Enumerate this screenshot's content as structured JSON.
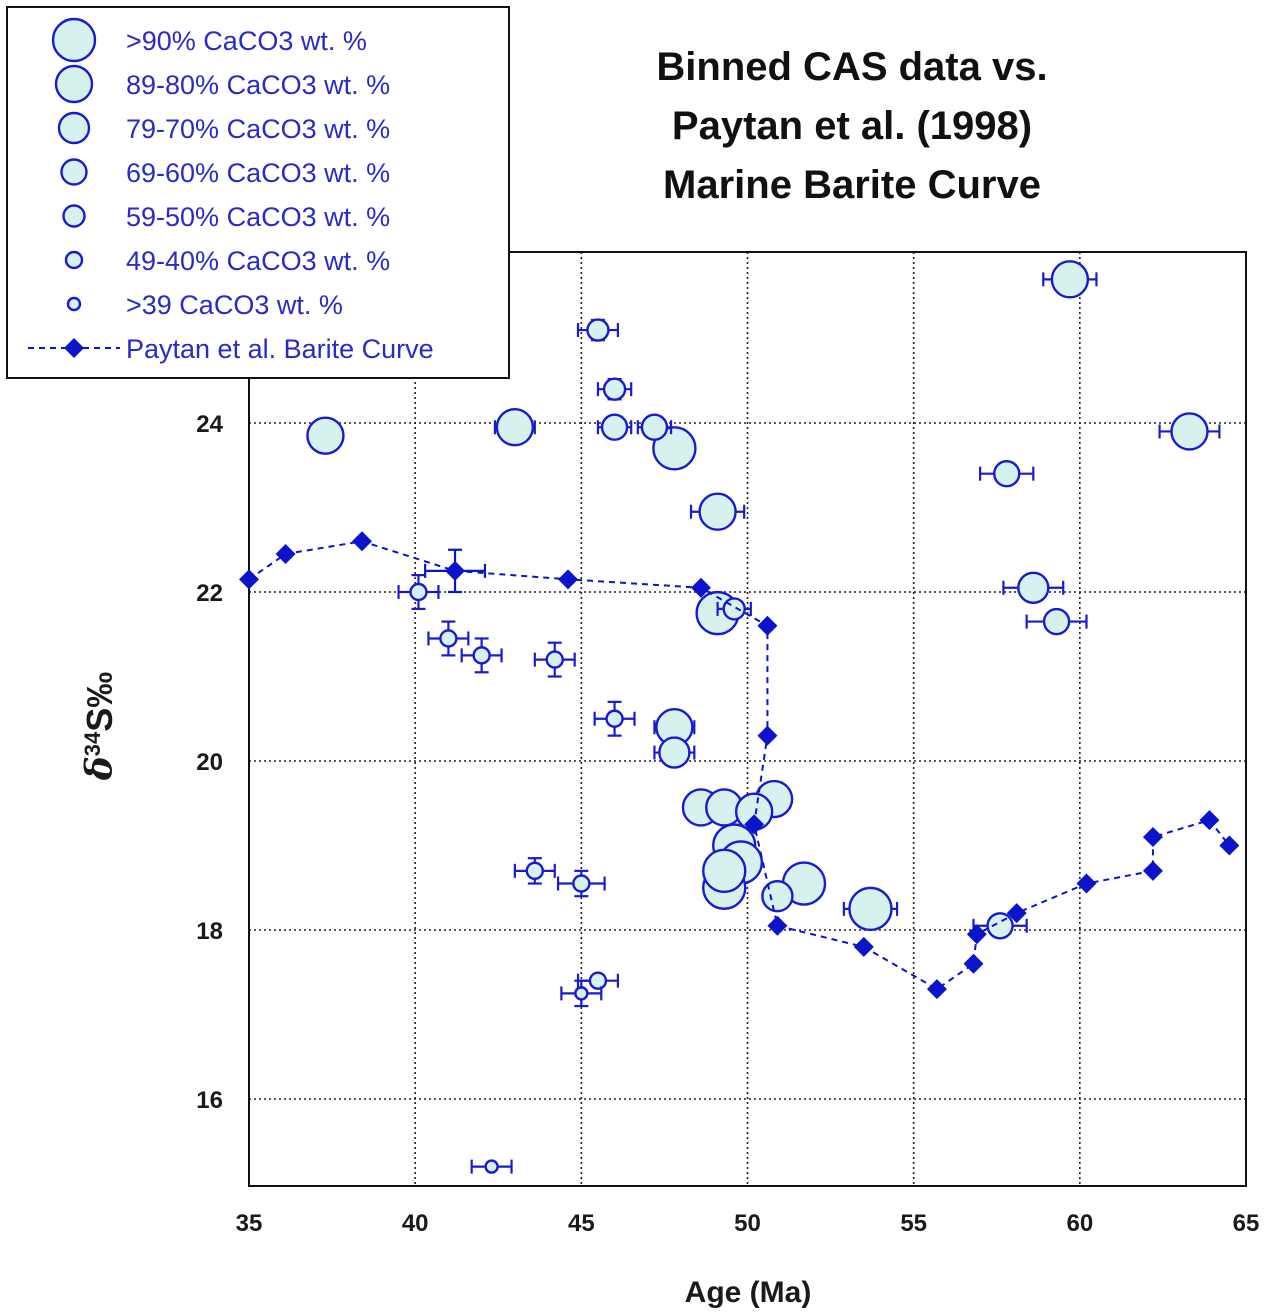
{
  "colors": {
    "marker_fill": "#d6f2ee",
    "marker_stroke": "#1a1ad0",
    "barite": "#0b14c8",
    "legend_text": "#2a2ac8",
    "axes": "#111111"
  },
  "chart_data": {
    "type": "scatter",
    "title": [
      "Binned CAS data vs.",
      "Paytan et al. (1998)",
      "Marine Barite Curve"
    ],
    "xlabel": "Age (Ma)",
    "ylabel": "δ34S‰",
    "xlim": [
      35,
      65
    ],
    "ylim": [
      15,
      26
    ],
    "xticks": [
      35,
      40,
      45,
      50,
      55,
      60,
      65
    ],
    "yticks": [
      16,
      18,
      20,
      22,
      24
    ],
    "grid": true,
    "legend_position": "top-left",
    "legend": [
      {
        "label": ">90% CaCO3 wt. %",
        "bin": 1
      },
      {
        "label": "89-80% CaCO3 wt. %",
        "bin": 2
      },
      {
        "label": "79-70% CaCO3 wt. %",
        "bin": 3
      },
      {
        "label": "69-60% CaCO3 wt. %",
        "bin": 4
      },
      {
        "label": "59-50% CaCO3 wt. %",
        "bin": 5
      },
      {
        "label": "49-40% CaCO3 wt. %",
        "bin": 6
      },
      {
        "label": ">39 CaCO3 wt. %",
        "bin": 7
      },
      {
        "label": "Paytan et al. Barite Curve",
        "bin": "line"
      }
    ],
    "cas_points": [
      {
        "x": 59.7,
        "y": 25.7,
        "bin": 2,
        "xerr": 0.8,
        "yerr": 0
      },
      {
        "x": 45.5,
        "y": 25.1,
        "bin": 5,
        "xerr": 0.6,
        "yerr": 0.12
      },
      {
        "x": 46.0,
        "y": 24.4,
        "bin": 5,
        "xerr": 0.5,
        "yerr": 0.12
      },
      {
        "x": 37.3,
        "y": 23.85,
        "bin": 2,
        "xerr": 0,
        "yerr": 0
      },
      {
        "x": 43.0,
        "y": 23.95,
        "bin": 2,
        "xerr": 0.6,
        "yerr": 0
      },
      {
        "x": 46.0,
        "y": 23.95,
        "bin": 4,
        "xerr": 0.5,
        "yerr": 0.1
      },
      {
        "x": 47.2,
        "y": 23.95,
        "bin": 4,
        "xerr": 0.5,
        "yerr": 0
      },
      {
        "x": 47.8,
        "y": 23.7,
        "bin": 1,
        "xerr": 0.5,
        "yerr": 0
      },
      {
        "x": 63.3,
        "y": 23.9,
        "bin": 2,
        "xerr": 0.9,
        "yerr": 0
      },
      {
        "x": 57.8,
        "y": 23.4,
        "bin": 4,
        "xerr": 0.8,
        "yerr": 0
      },
      {
        "x": 49.1,
        "y": 22.95,
        "bin": 2,
        "xerr": 0.8,
        "yerr": 0
      },
      {
        "x": 58.6,
        "y": 22.05,
        "bin": 3,
        "xerr": 0.9,
        "yerr": 0
      },
      {
        "x": 40.1,
        "y": 22.0,
        "bin": 6,
        "xerr": 0.6,
        "yerr": 0.2
      },
      {
        "x": 49.1,
        "y": 21.75,
        "bin": 1,
        "xerr": 0.4,
        "yerr": 0
      },
      {
        "x": 49.6,
        "y": 21.8,
        "bin": 5,
        "xerr": 0.5,
        "yerr": 0
      },
      {
        "x": 59.3,
        "y": 21.65,
        "bin": 4,
        "xerr": 0.9,
        "yerr": 0
      },
      {
        "x": 41.0,
        "y": 21.45,
        "bin": 6,
        "xerr": 0.6,
        "yerr": 0.2
      },
      {
        "x": 42.0,
        "y": 21.25,
        "bin": 6,
        "xerr": 0.6,
        "yerr": 0.2
      },
      {
        "x": 44.2,
        "y": 21.2,
        "bin": 6,
        "xerr": 0.6,
        "yerr": 0.2
      },
      {
        "x": 46.0,
        "y": 20.5,
        "bin": 6,
        "xerr": 0.6,
        "yerr": 0.2
      },
      {
        "x": 47.8,
        "y": 20.4,
        "bin": 2,
        "xerr": 0.6,
        "yerr": 0
      },
      {
        "x": 47.8,
        "y": 20.1,
        "bin": 3,
        "xerr": 0.6,
        "yerr": 0
      },
      {
        "x": 50.8,
        "y": 19.55,
        "bin": 2,
        "xerr": 0.3,
        "yerr": 0
      },
      {
        "x": 48.6,
        "y": 19.45,
        "bin": 2,
        "xerr": 0,
        "yerr": 0
      },
      {
        "x": 49.3,
        "y": 19.45,
        "bin": 2,
        "xerr": 0,
        "yerr": 0
      },
      {
        "x": 50.2,
        "y": 19.4,
        "bin": 2,
        "xerr": 0,
        "yerr": 0
      },
      {
        "x": 49.6,
        "y": 19.0,
        "bin": 1,
        "xerr": 0,
        "yerr": 0
      },
      {
        "x": 49.8,
        "y": 18.8,
        "bin": 1,
        "xerr": 0.4,
        "yerr": 0
      },
      {
        "x": 49.3,
        "y": 18.5,
        "bin": 1,
        "xerr": 0,
        "yerr": 0
      },
      {
        "x": 49.3,
        "y": 18.7,
        "bin": 1,
        "xerr": 0.5,
        "yerr": 0
      },
      {
        "x": 51.7,
        "y": 18.55,
        "bin": 1,
        "xerr": 0,
        "yerr": 0
      },
      {
        "x": 50.9,
        "y": 18.4,
        "bin": 3,
        "xerr": 0,
        "yerr": 0
      },
      {
        "x": 53.7,
        "y": 18.25,
        "bin": 1,
        "xerr": 0.8,
        "yerr": 0
      },
      {
        "x": 57.6,
        "y": 18.05,
        "bin": 4,
        "xerr": 0.8,
        "yerr": 0
      },
      {
        "x": 43.6,
        "y": 18.7,
        "bin": 6,
        "xerr": 0.6,
        "yerr": 0.15
      },
      {
        "x": 45.0,
        "y": 18.55,
        "bin": 6,
        "xerr": 0.7,
        "yerr": 0.15
      },
      {
        "x": 45.5,
        "y": 17.4,
        "bin": 6,
        "xerr": 0.6,
        "yerr": 0
      },
      {
        "x": 45.0,
        "y": 17.25,
        "bin": 7,
        "xerr": 0.6,
        "yerr": 0.15
      },
      {
        "x": 42.3,
        "y": 15.2,
        "bin": 7,
        "xerr": 0.6,
        "yerr": 0
      }
    ],
    "barite_curve": {
      "name": "Paytan et al. Barite Curve",
      "points": [
        {
          "x": 35.0,
          "y": 22.15,
          "xerr": 0,
          "yerr": 0
        },
        {
          "x": 36.1,
          "y": 22.45,
          "xerr": 0,
          "yerr": 0
        },
        {
          "x": 38.4,
          "y": 22.6,
          "xerr": 0,
          "yerr": 0
        },
        {
          "x": 41.2,
          "y": 22.25,
          "xerr": 0.9,
          "yerr": 0.25
        },
        {
          "x": 44.6,
          "y": 22.15,
          "xerr": 0,
          "yerr": 0
        },
        {
          "x": 48.6,
          "y": 22.05,
          "xerr": 0,
          "yerr": 0
        },
        {
          "x": 50.6,
          "y": 21.6,
          "xerr": 0,
          "yerr": 0
        },
        {
          "x": 50.6,
          "y": 20.3,
          "xerr": 0,
          "yerr": 0
        },
        {
          "x": 50.2,
          "y": 19.25,
          "xerr": 0,
          "yerr": 0
        },
        {
          "x": 50.9,
          "y": 18.05,
          "xerr": 0,
          "yerr": 0
        },
        {
          "x": 53.5,
          "y": 17.8,
          "xerr": 0,
          "yerr": 0
        },
        {
          "x": 55.7,
          "y": 17.3,
          "xerr": 0,
          "yerr": 0
        },
        {
          "x": 56.8,
          "y": 17.6,
          "xerr": 0,
          "yerr": 0
        },
        {
          "x": 56.9,
          "y": 17.95,
          "xerr": 0,
          "yerr": 0
        },
        {
          "x": 58.1,
          "y": 18.2,
          "xerr": 0,
          "yerr": 0
        },
        {
          "x": 60.2,
          "y": 18.55,
          "xerr": 0,
          "yerr": 0
        },
        {
          "x": 62.2,
          "y": 18.7,
          "xerr": 0,
          "yerr": 0
        },
        {
          "x": 62.2,
          "y": 19.1,
          "xerr": 0,
          "yerr": 0
        },
        {
          "x": 63.9,
          "y": 19.3,
          "xerr": 0,
          "yerr": 0
        },
        {
          "x": 64.5,
          "y": 19.0,
          "xerr": 0,
          "yerr": 0
        }
      ]
    }
  }
}
